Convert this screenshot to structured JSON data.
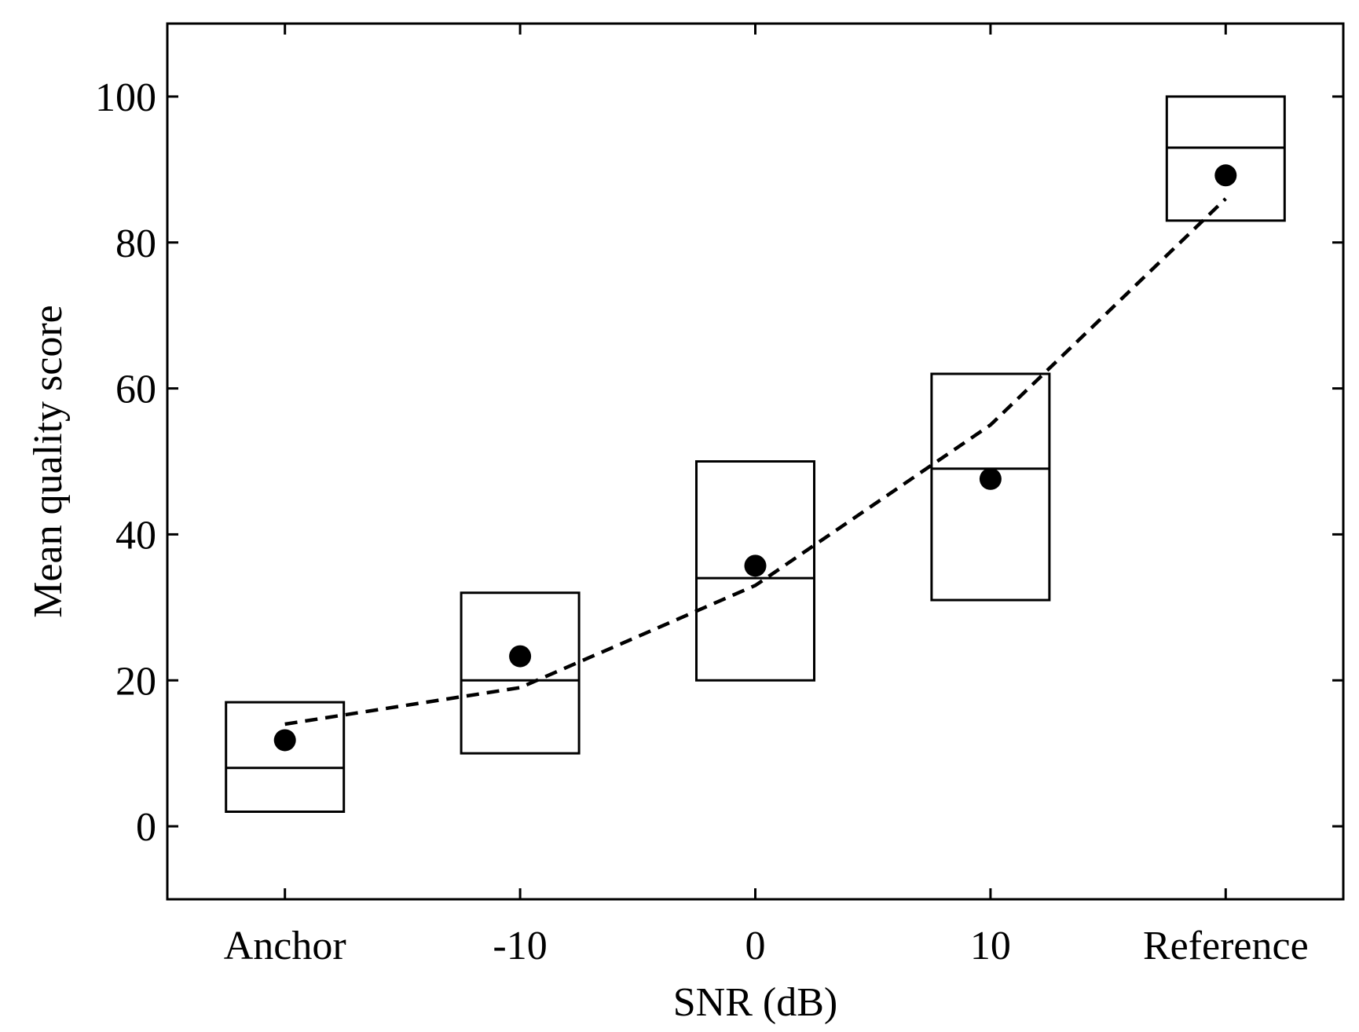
{
  "chart_data": {
    "type": "box",
    "title": "",
    "xlabel": "SNR (dB)",
    "ylabel": "Mean quality score",
    "categories": [
      "Anchor",
      "-10",
      "0",
      "10",
      "Reference"
    ],
    "ylim": [
      -10,
      110
    ],
    "yticks": [
      0,
      20,
      40,
      60,
      80,
      100
    ],
    "grid": false,
    "legend": "none",
    "boxes": [
      {
        "category": "Anchor",
        "q1": 2,
        "median": 8,
        "q3": 17
      },
      {
        "category": "-10",
        "q1": 10,
        "median": 20,
        "q3": 32
      },
      {
        "category": "0",
        "q1": 20,
        "median": 34,
        "q3": 50
      },
      {
        "category": "10",
        "q1": 31,
        "median": 49,
        "q3": 62
      },
      {
        "category": "Reference",
        "q1": 83,
        "median": 93,
        "q3": 100
      }
    ],
    "means": [
      11.8,
      23.3,
      35.7,
      47.6,
      89.2
    ],
    "trend_line": [
      14,
      19,
      33,
      55,
      86
    ],
    "colors": {
      "ink": "#000000",
      "background": "#ffffff"
    }
  }
}
